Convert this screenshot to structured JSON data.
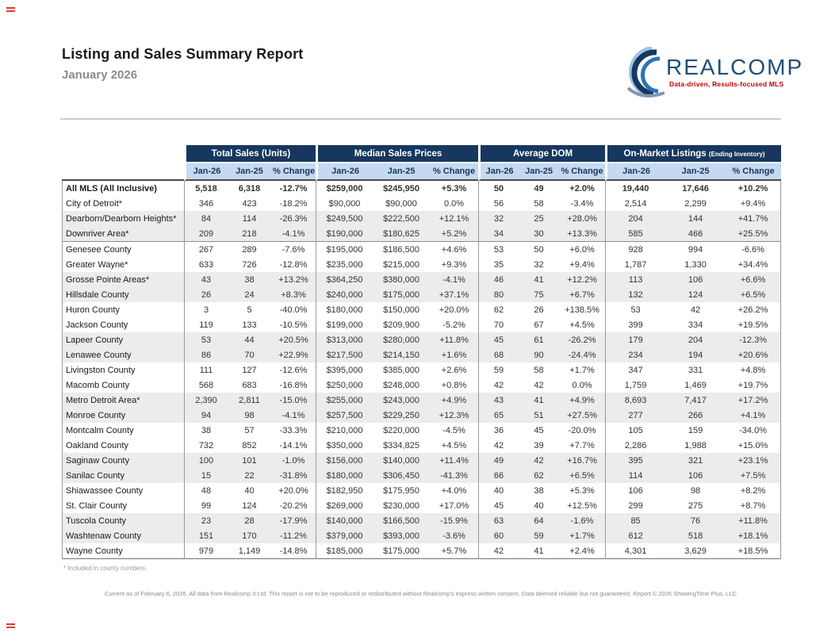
{
  "report": {
    "title": "Listing and Sales Summary Report",
    "subtitle": "January 2026",
    "footnote": "* Included in county numbers.",
    "footer": "Current as of February 6, 2026. All data from Realcomp II Ltd. This report is not to be reproduced or redistributed without Realcomp's express written consent. Data deemed reliable but not guaranteed. Report © 2026 ShowingTime Plus, LLC."
  },
  "logo": {
    "wordmark": "REALCOMP",
    "tagline": "Data-driven, Results-focused MLS"
  },
  "colors": {
    "header_bg": "#17375E",
    "subheader_bg": "#C5D9F1",
    "stripe": "#ECECEC",
    "logo_navy": "#1F4E79",
    "logo_red": "#C00000",
    "logo_light_blue": "#9DC3E6",
    "logo_mid_blue": "#2E74B5"
  },
  "table": {
    "groups": [
      {
        "label": "Total Sales (Units)",
        "note": ""
      },
      {
        "label": "Median Sales Prices",
        "note": ""
      },
      {
        "label": "Average DOM",
        "note": ""
      },
      {
        "label": "On-Market Listings",
        "note": "(Ending Inventory)"
      }
    ],
    "subheaders": [
      "Jan-26",
      "Jan-25",
      "% Change"
    ],
    "rows": [
      {
        "label": "All MLS (All Inclusive)",
        "bold": true,
        "values": [
          "5,518",
          "6,318",
          "-12.7%",
          "$259,000",
          "$245,950",
          "+5.3%",
          "50",
          "49",
          "+2.0%",
          "19,440",
          "17,646",
          "+10.2%"
        ]
      },
      {
        "label": "City of Detroit*",
        "values": [
          "346",
          "423",
          "-18.2%",
          "$90,000",
          "$90,000",
          "0.0%",
          "56",
          "58",
          "-3.4%",
          "2,514",
          "2,299",
          "+9.4%"
        ]
      },
      {
        "label": "Dearborn/Dearborn Heights*",
        "values": [
          "84",
          "114",
          "-26.3%",
          "$249,500",
          "$222,500",
          "+12.1%",
          "32",
          "25",
          "+28.0%",
          "204",
          "144",
          "+41.7%"
        ]
      },
      {
        "label": "Downriver Area*",
        "separator": true,
        "values": [
          "209",
          "218",
          "-4.1%",
          "$190,000",
          "$180,625",
          "+5.2%",
          "34",
          "30",
          "+13.3%",
          "585",
          "466",
          "+25.5%"
        ]
      },
      {
        "label": "Genesee County",
        "values": [
          "267",
          "289",
          "-7.6%",
          "$195,000",
          "$186,500",
          "+4.6%",
          "53",
          "50",
          "+6.0%",
          "928",
          "994",
          "-6.6%"
        ]
      },
      {
        "label": "Greater Wayne*",
        "values": [
          "633",
          "726",
          "-12.8%",
          "$235,000",
          "$215,000",
          "+9.3%",
          "35",
          "32",
          "+9.4%",
          "1,787",
          "1,330",
          "+34.4%"
        ]
      },
      {
        "label": "Grosse Pointe Areas*",
        "values": [
          "43",
          "38",
          "+13.2%",
          "$364,250",
          "$380,000",
          "-4.1%",
          "46",
          "41",
          "+12.2%",
          "113",
          "106",
          "+6.6%"
        ]
      },
      {
        "label": "Hillsdale County",
        "values": [
          "26",
          "24",
          "+8.3%",
          "$240,000",
          "$175,000",
          "+37.1%",
          "80",
          "75",
          "+6.7%",
          "132",
          "124",
          "+6.5%"
        ]
      },
      {
        "label": "Huron County",
        "values": [
          "3",
          "5",
          "-40.0%",
          "$180,000",
          "$150,000",
          "+20.0%",
          "62",
          "26",
          "+138.5%",
          "53",
          "42",
          "+26.2%"
        ]
      },
      {
        "label": "Jackson County",
        "values": [
          "119",
          "133",
          "-10.5%",
          "$199,000",
          "$209,900",
          "-5.2%",
          "70",
          "67",
          "+4.5%",
          "399",
          "334",
          "+19.5%"
        ]
      },
      {
        "label": "Lapeer County",
        "values": [
          "53",
          "44",
          "+20.5%",
          "$313,000",
          "$280,000",
          "+11.8%",
          "45",
          "61",
          "-26.2%",
          "179",
          "204",
          "-12.3%"
        ]
      },
      {
        "label": "Lenawee County",
        "values": [
          "86",
          "70",
          "+22.9%",
          "$217,500",
          "$214,150",
          "+1.6%",
          "68",
          "90",
          "-24.4%",
          "234",
          "194",
          "+20.6%"
        ]
      },
      {
        "label": "Livingston County",
        "values": [
          "111",
          "127",
          "-12.6%",
          "$395,000",
          "$385,000",
          "+2.6%",
          "59",
          "58",
          "+1.7%",
          "347",
          "331",
          "+4.8%"
        ]
      },
      {
        "label": "Macomb County",
        "values": [
          "568",
          "683",
          "-16.8%",
          "$250,000",
          "$248,000",
          "+0.8%",
          "42",
          "42",
          "0.0%",
          "1,759",
          "1,469",
          "+19.7%"
        ]
      },
      {
        "label": "Metro Detroit Area*",
        "values": [
          "2,390",
          "2,811",
          "-15.0%",
          "$255,000",
          "$243,000",
          "+4.9%",
          "43",
          "41",
          "+4.9%",
          "8,693",
          "7,417",
          "+17.2%"
        ]
      },
      {
        "label": "Monroe County",
        "values": [
          "94",
          "98",
          "-4.1%",
          "$257,500",
          "$229,250",
          "+12.3%",
          "65",
          "51",
          "+27.5%",
          "277",
          "266",
          "+4.1%"
        ]
      },
      {
        "label": "Montcalm County",
        "values": [
          "38",
          "57",
          "-33.3%",
          "$210,000",
          "$220,000",
          "-4.5%",
          "36",
          "45",
          "-20.0%",
          "105",
          "159",
          "-34.0%"
        ]
      },
      {
        "label": "Oakland County",
        "values": [
          "732",
          "852",
          "-14.1%",
          "$350,000",
          "$334,825",
          "+4.5%",
          "42",
          "39",
          "+7.7%",
          "2,286",
          "1,988",
          "+15.0%"
        ]
      },
      {
        "label": "Saginaw County",
        "values": [
          "100",
          "101",
          "-1.0%",
          "$156,000",
          "$140,000",
          "+11.4%",
          "49",
          "42",
          "+16.7%",
          "395",
          "321",
          "+23.1%"
        ]
      },
      {
        "label": "Sanilac County",
        "values": [
          "15",
          "22",
          "-31.8%",
          "$180,000",
          "$306,450",
          "-41.3%",
          "66",
          "62",
          "+6.5%",
          "114",
          "106",
          "+7.5%"
        ]
      },
      {
        "label": "Shiawassee County",
        "values": [
          "48",
          "40",
          "+20.0%",
          "$182,950",
          "$175,950",
          "+4.0%",
          "40",
          "38",
          "+5.3%",
          "106",
          "98",
          "+8.2%"
        ]
      },
      {
        "label": "St. Clair County",
        "values": [
          "99",
          "124",
          "-20.2%",
          "$269,000",
          "$230,000",
          "+17.0%",
          "45",
          "40",
          "+12.5%",
          "299",
          "275",
          "+8.7%"
        ]
      },
      {
        "label": "Tuscola County",
        "values": [
          "23",
          "28",
          "-17.9%",
          "$140,000",
          "$166,500",
          "-15.9%",
          "63",
          "64",
          "-1.6%",
          "85",
          "76",
          "+11.8%"
        ]
      },
      {
        "label": "Washtenaw County",
        "values": [
          "151",
          "170",
          "-11.2%",
          "$379,000",
          "$393,000",
          "-3.6%",
          "60",
          "59",
          "+1.7%",
          "612",
          "518",
          "+18.1%"
        ]
      },
      {
        "label": "Wayne County",
        "values": [
          "979",
          "1,149",
          "-14.8%",
          "$185,000",
          "$175,000",
          "+5.7%",
          "42",
          "41",
          "+2.4%",
          "4,301",
          "3,629",
          "+18.5%"
        ]
      }
    ]
  }
}
